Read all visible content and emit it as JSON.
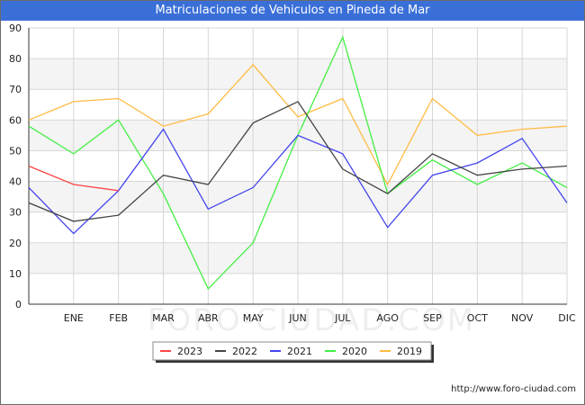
{
  "header": {
    "title": "Matriculaciones de Vehiculos en Pineda de Mar"
  },
  "footer": {
    "url": "http://www.foro-ciudad.com"
  },
  "watermark": "FORO-CIUDAD.COM",
  "chart_data": {
    "type": "line",
    "title": "Matriculaciones de Vehiculos en Pineda de Mar",
    "categories": [
      "",
      "ENE",
      "FEB",
      "MAR",
      "ABR",
      "MAY",
      "JUN",
      "JUL",
      "AGO",
      "SEP",
      "OCT",
      "NOV",
      "DIC"
    ],
    "ylim": [
      0,
      90
    ],
    "yticks": [
      0,
      10,
      20,
      30,
      40,
      50,
      60,
      70,
      80,
      90
    ],
    "grid": true,
    "legend_position": "bottom",
    "series": [
      {
        "name": "2023",
        "color": "#ff4444",
        "values": [
          45,
          39,
          37,
          null,
          null,
          null,
          null,
          null,
          null,
          null,
          null,
          null,
          null
        ]
      },
      {
        "name": "2022",
        "color": "#444444",
        "values": [
          33,
          27,
          29,
          42,
          39,
          59,
          66,
          44,
          36,
          49,
          42,
          44,
          45
        ]
      },
      {
        "name": "2021",
        "color": "#4444ee",
        "values": [
          38,
          23,
          37,
          57,
          31,
          38,
          55,
          49,
          25,
          42,
          46,
          54,
          33
        ]
      },
      {
        "name": "2020",
        "color": "#44ee44",
        "values": [
          58,
          49,
          60,
          36,
          5,
          20,
          55,
          87,
          36,
          47,
          39,
          46,
          38
        ]
      },
      {
        "name": "2019",
        "color": "#ffbb44",
        "values": [
          60,
          66,
          67,
          58,
          62,
          78,
          61,
          67,
          39,
          67,
          55,
          57,
          58
        ]
      }
    ]
  }
}
